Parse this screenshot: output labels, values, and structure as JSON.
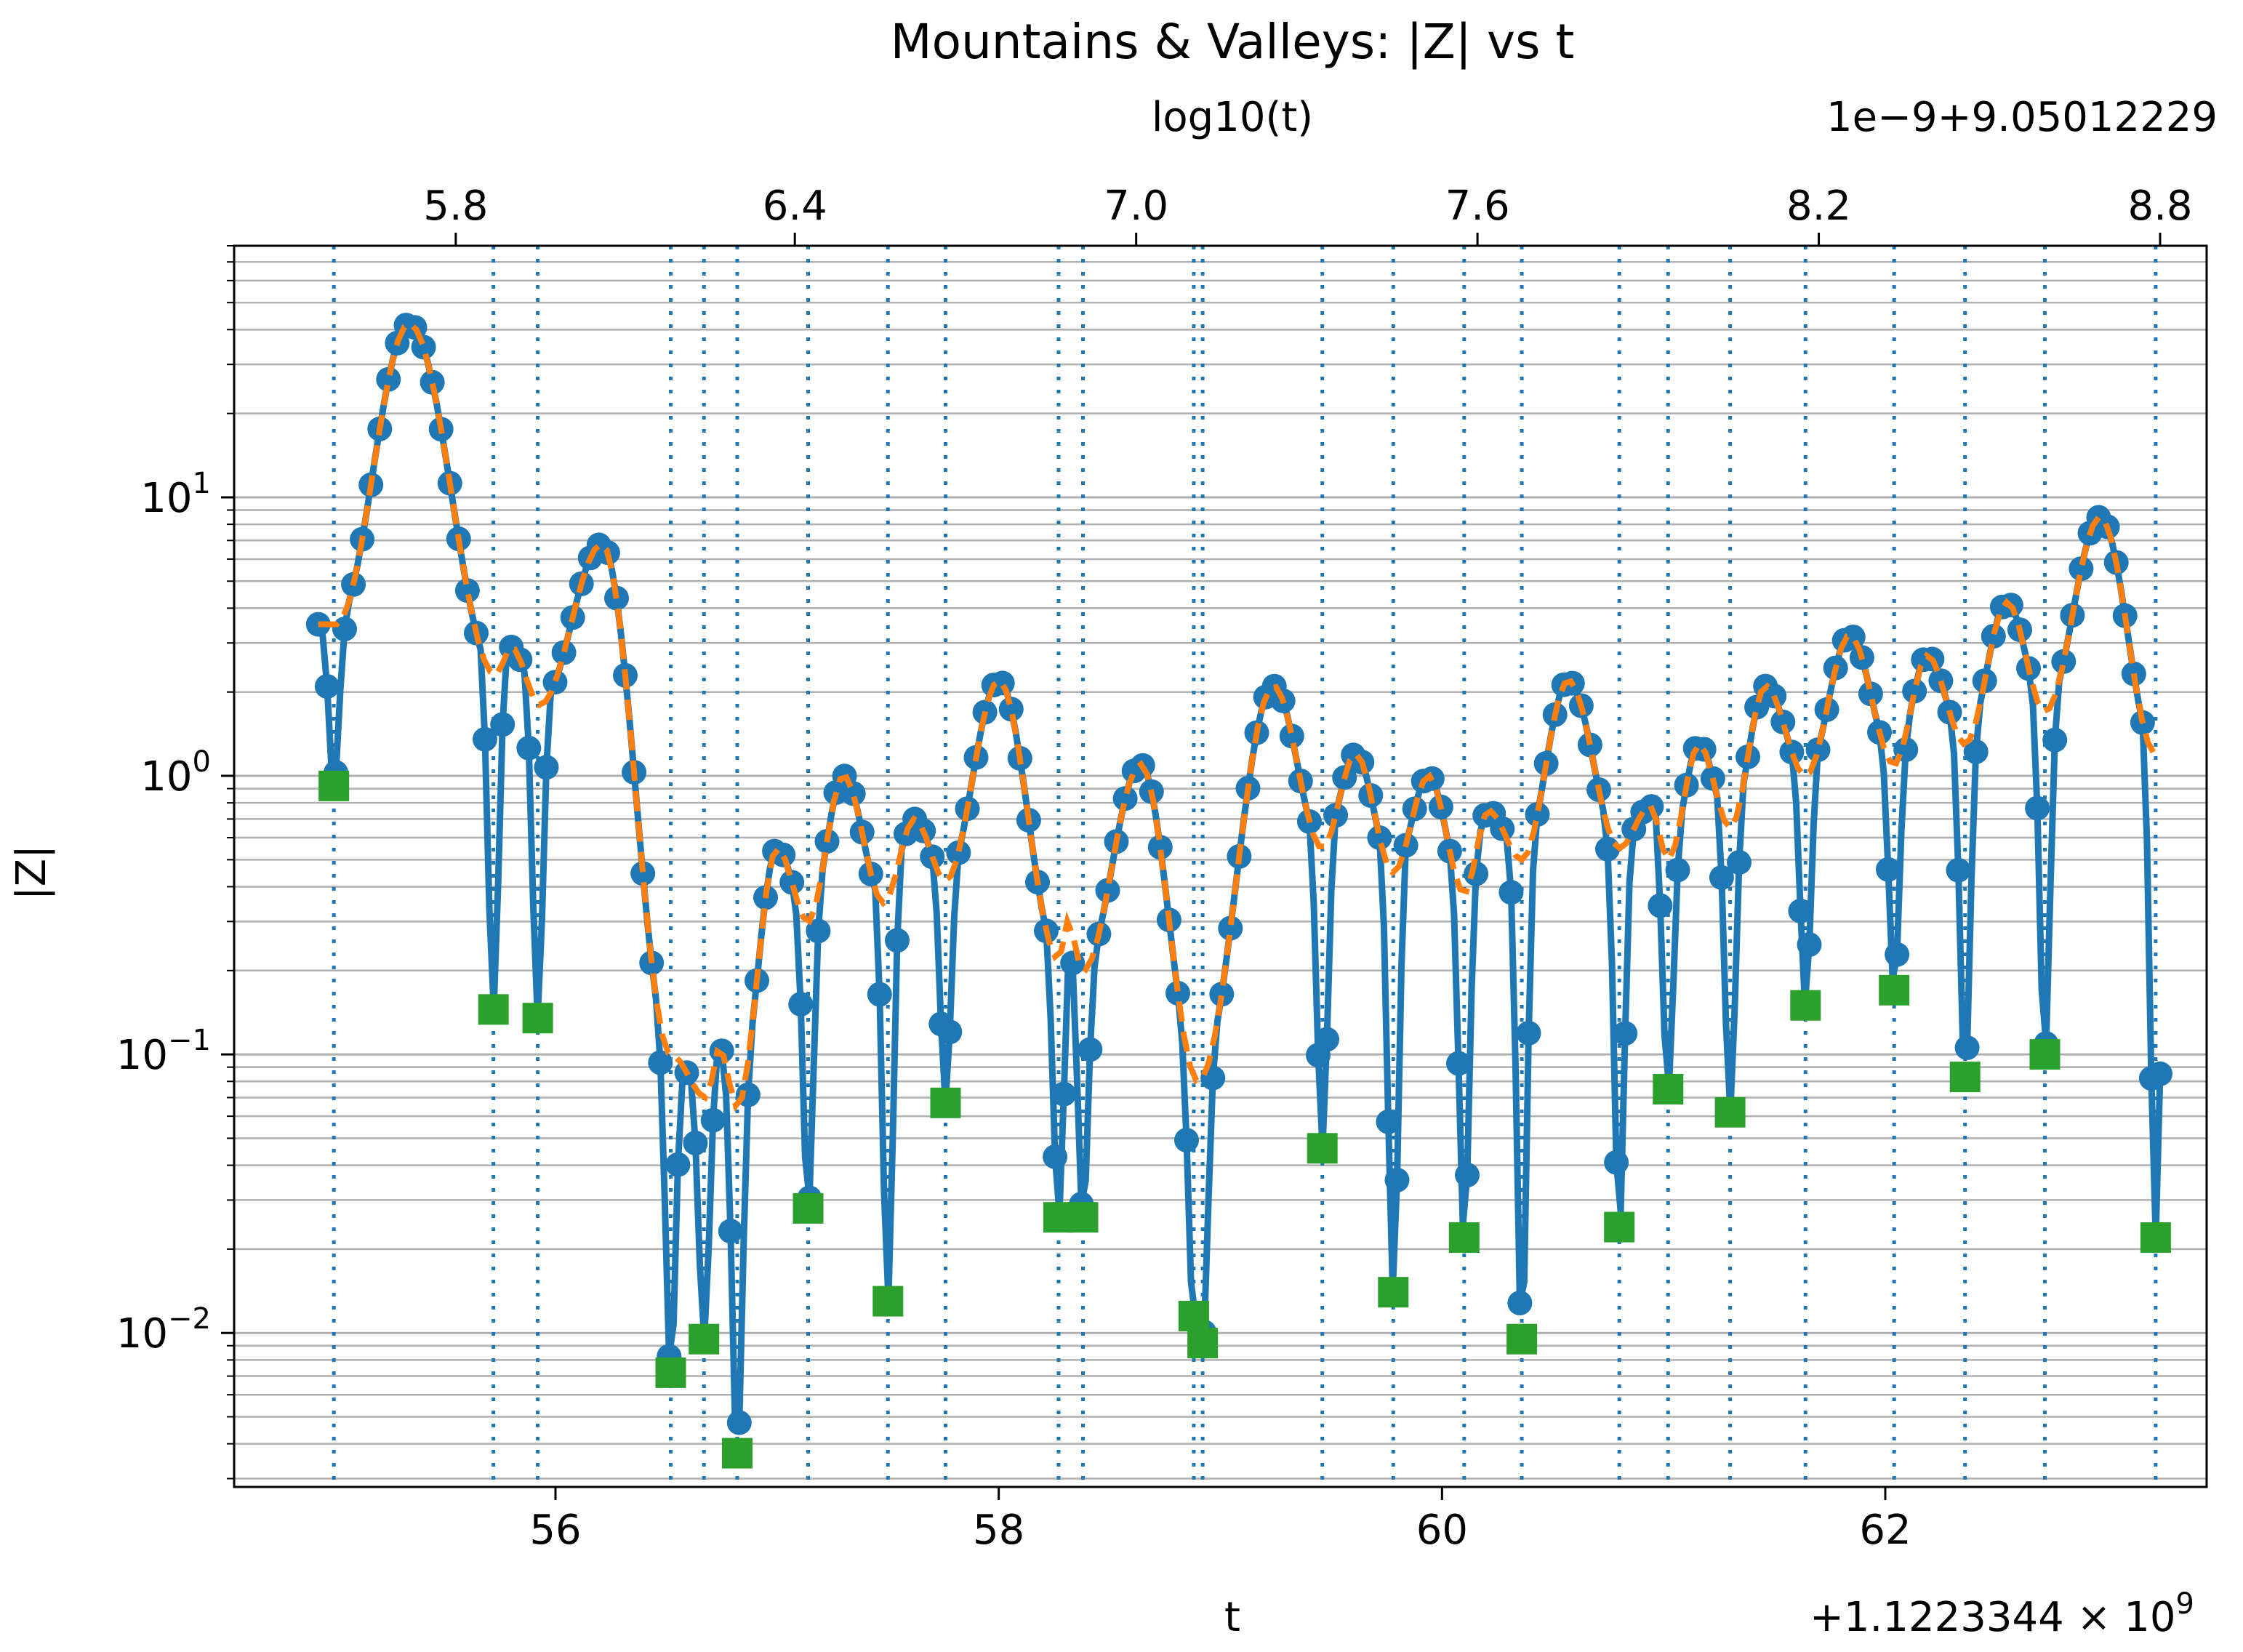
{
  "chart_data": {
    "type": "line",
    "title": "Mountains & Valleys: |Z| vs t",
    "xlabel": "t",
    "ylabel": "|Z|",
    "x_offset_label": "+1.1223344 × 10",
    "x_offset_exp": "9",
    "secondary_x_title": "log10(t)",
    "secondary_x_offset_label": "1e−9+9.05012229",
    "x_offset": 1122334400,
    "xlim": [
      54.55,
      63.45
    ],
    "ylim": [
      0.0028,
      80
    ],
    "yscale": "log",
    "grid": "y-major-and-minor",
    "xticks": [
      {
        "value": 56,
        "label": "56"
      },
      {
        "value": 58,
        "label": "58"
      },
      {
        "value": 60,
        "label": "60"
      },
      {
        "value": 62,
        "label": "62"
      }
    ],
    "yticks": [
      {
        "value": 0.01,
        "base": "10",
        "exp": "−2"
      },
      {
        "value": 0.1,
        "base": "10",
        "exp": "−1"
      },
      {
        "value": 1,
        "base": "10",
        "exp": "0"
      },
      {
        "value": 10,
        "base": "10",
        "exp": "1"
      }
    ],
    "secondary_xticks": [
      {
        "value": 55.55,
        "label": "5.8"
      },
      {
        "value": 57.08,
        "label": "6.4"
      },
      {
        "value": 58.62,
        "label": "7.0"
      },
      {
        "value": 60.16,
        "label": "7.6"
      },
      {
        "value": 61.7,
        "label": "8.2"
      },
      {
        "value": 63.24,
        "label": "8.8"
      }
    ],
    "zeros": [
      55.0,
      55.72,
      55.92,
      56.52,
      56.67,
      56.82,
      57.14,
      57.5,
      57.76,
      58.27,
      58.38,
      58.88,
      58.92,
      59.46,
      59.78,
      60.1,
      60.36,
      60.8,
      61.02,
      61.3,
      61.64,
      62.04,
      62.36,
      62.72,
      63.22
    ],
    "valley_values": [
      0.92,
      0.145,
      0.135,
      0.0072,
      0.0095,
      0.0037,
      0.028,
      0.013,
      0.067,
      0.026,
      0.026,
      0.0115,
      0.0092,
      0.046,
      0.014,
      0.022,
      0.0095,
      0.024,
      0.075,
      0.062,
      0.15,
      0.17,
      0.083,
      0.1,
      0.022
    ],
    "peaks": [
      {
        "t": 55.34,
        "z": 42
      },
      {
        "t": 55.8,
        "z": 2.9
      },
      {
        "t": 56.21,
        "z": 6.8
      },
      {
        "t": 56.74,
        "z": 0.105
      },
      {
        "t": 57.0,
        "z": 0.55
      },
      {
        "t": 57.3,
        "z": 1.0
      },
      {
        "t": 57.62,
        "z": 0.7
      },
      {
        "t": 58.0,
        "z": 2.2
      },
      {
        "t": 58.31,
        "z": 0.3
      },
      {
        "t": 58.64,
        "z": 1.1
      },
      {
        "t": 59.24,
        "z": 2.1
      },
      {
        "t": 59.61,
        "z": 1.2
      },
      {
        "t": 59.94,
        "z": 1.0
      },
      {
        "t": 60.21,
        "z": 0.75
      },
      {
        "t": 60.57,
        "z": 2.2
      },
      {
        "t": 60.94,
        "z": 0.78
      },
      {
        "t": 61.16,
        "z": 1.3
      },
      {
        "t": 61.46,
        "z": 2.1
      },
      {
        "t": 61.84,
        "z": 3.2
      },
      {
        "t": 62.19,
        "z": 2.7
      },
      {
        "t": 62.55,
        "z": 4.2
      },
      {
        "t": 62.97,
        "z": 8.5
      }
    ],
    "troughs": [
      {
        "t": 55.01,
        "z": 3.5
      },
      {
        "t": 55.73,
        "z": 2.3
      },
      {
        "t": 55.93,
        "z": 1.8
      },
      {
        "t": 56.52,
        "z": 0.1
      },
      {
        "t": 56.68,
        "z": 0.07
      },
      {
        "t": 56.82,
        "z": 0.065
      },
      {
        "t": 57.14,
        "z": 0.3
      },
      {
        "t": 57.48,
        "z": 0.35
      },
      {
        "t": 57.76,
        "z": 0.42
      },
      {
        "t": 58.27,
        "z": 0.22
      },
      {
        "t": 58.38,
        "z": 0.2
      },
      {
        "t": 58.9,
        "z": 0.08
      },
      {
        "t": 59.46,
        "z": 0.55
      },
      {
        "t": 59.78,
        "z": 0.45
      },
      {
        "t": 60.1,
        "z": 0.38
      },
      {
        "t": 60.36,
        "z": 0.5
      },
      {
        "t": 60.8,
        "z": 0.55
      },
      {
        "t": 61.02,
        "z": 0.5
      },
      {
        "t": 61.3,
        "z": 0.65
      },
      {
        "t": 61.64,
        "z": 1.0
      },
      {
        "t": 62.04,
        "z": 1.1
      },
      {
        "t": 62.36,
        "z": 1.3
      },
      {
        "t": 62.72,
        "z": 1.7
      },
      {
        "t": 63.22,
        "z": 1.2
      }
    ],
    "series": [
      {
        "style": "solid line with circle markers",
        "color": "#1f77b4"
      },
      {
        "style": "dashed",
        "color": "#ff7f0e"
      },
      {
        "style": "square markers",
        "color": "#2ca02c"
      },
      {
        "style": "dotted vertical lines",
        "color": "#1f77b4"
      }
    ]
  }
}
